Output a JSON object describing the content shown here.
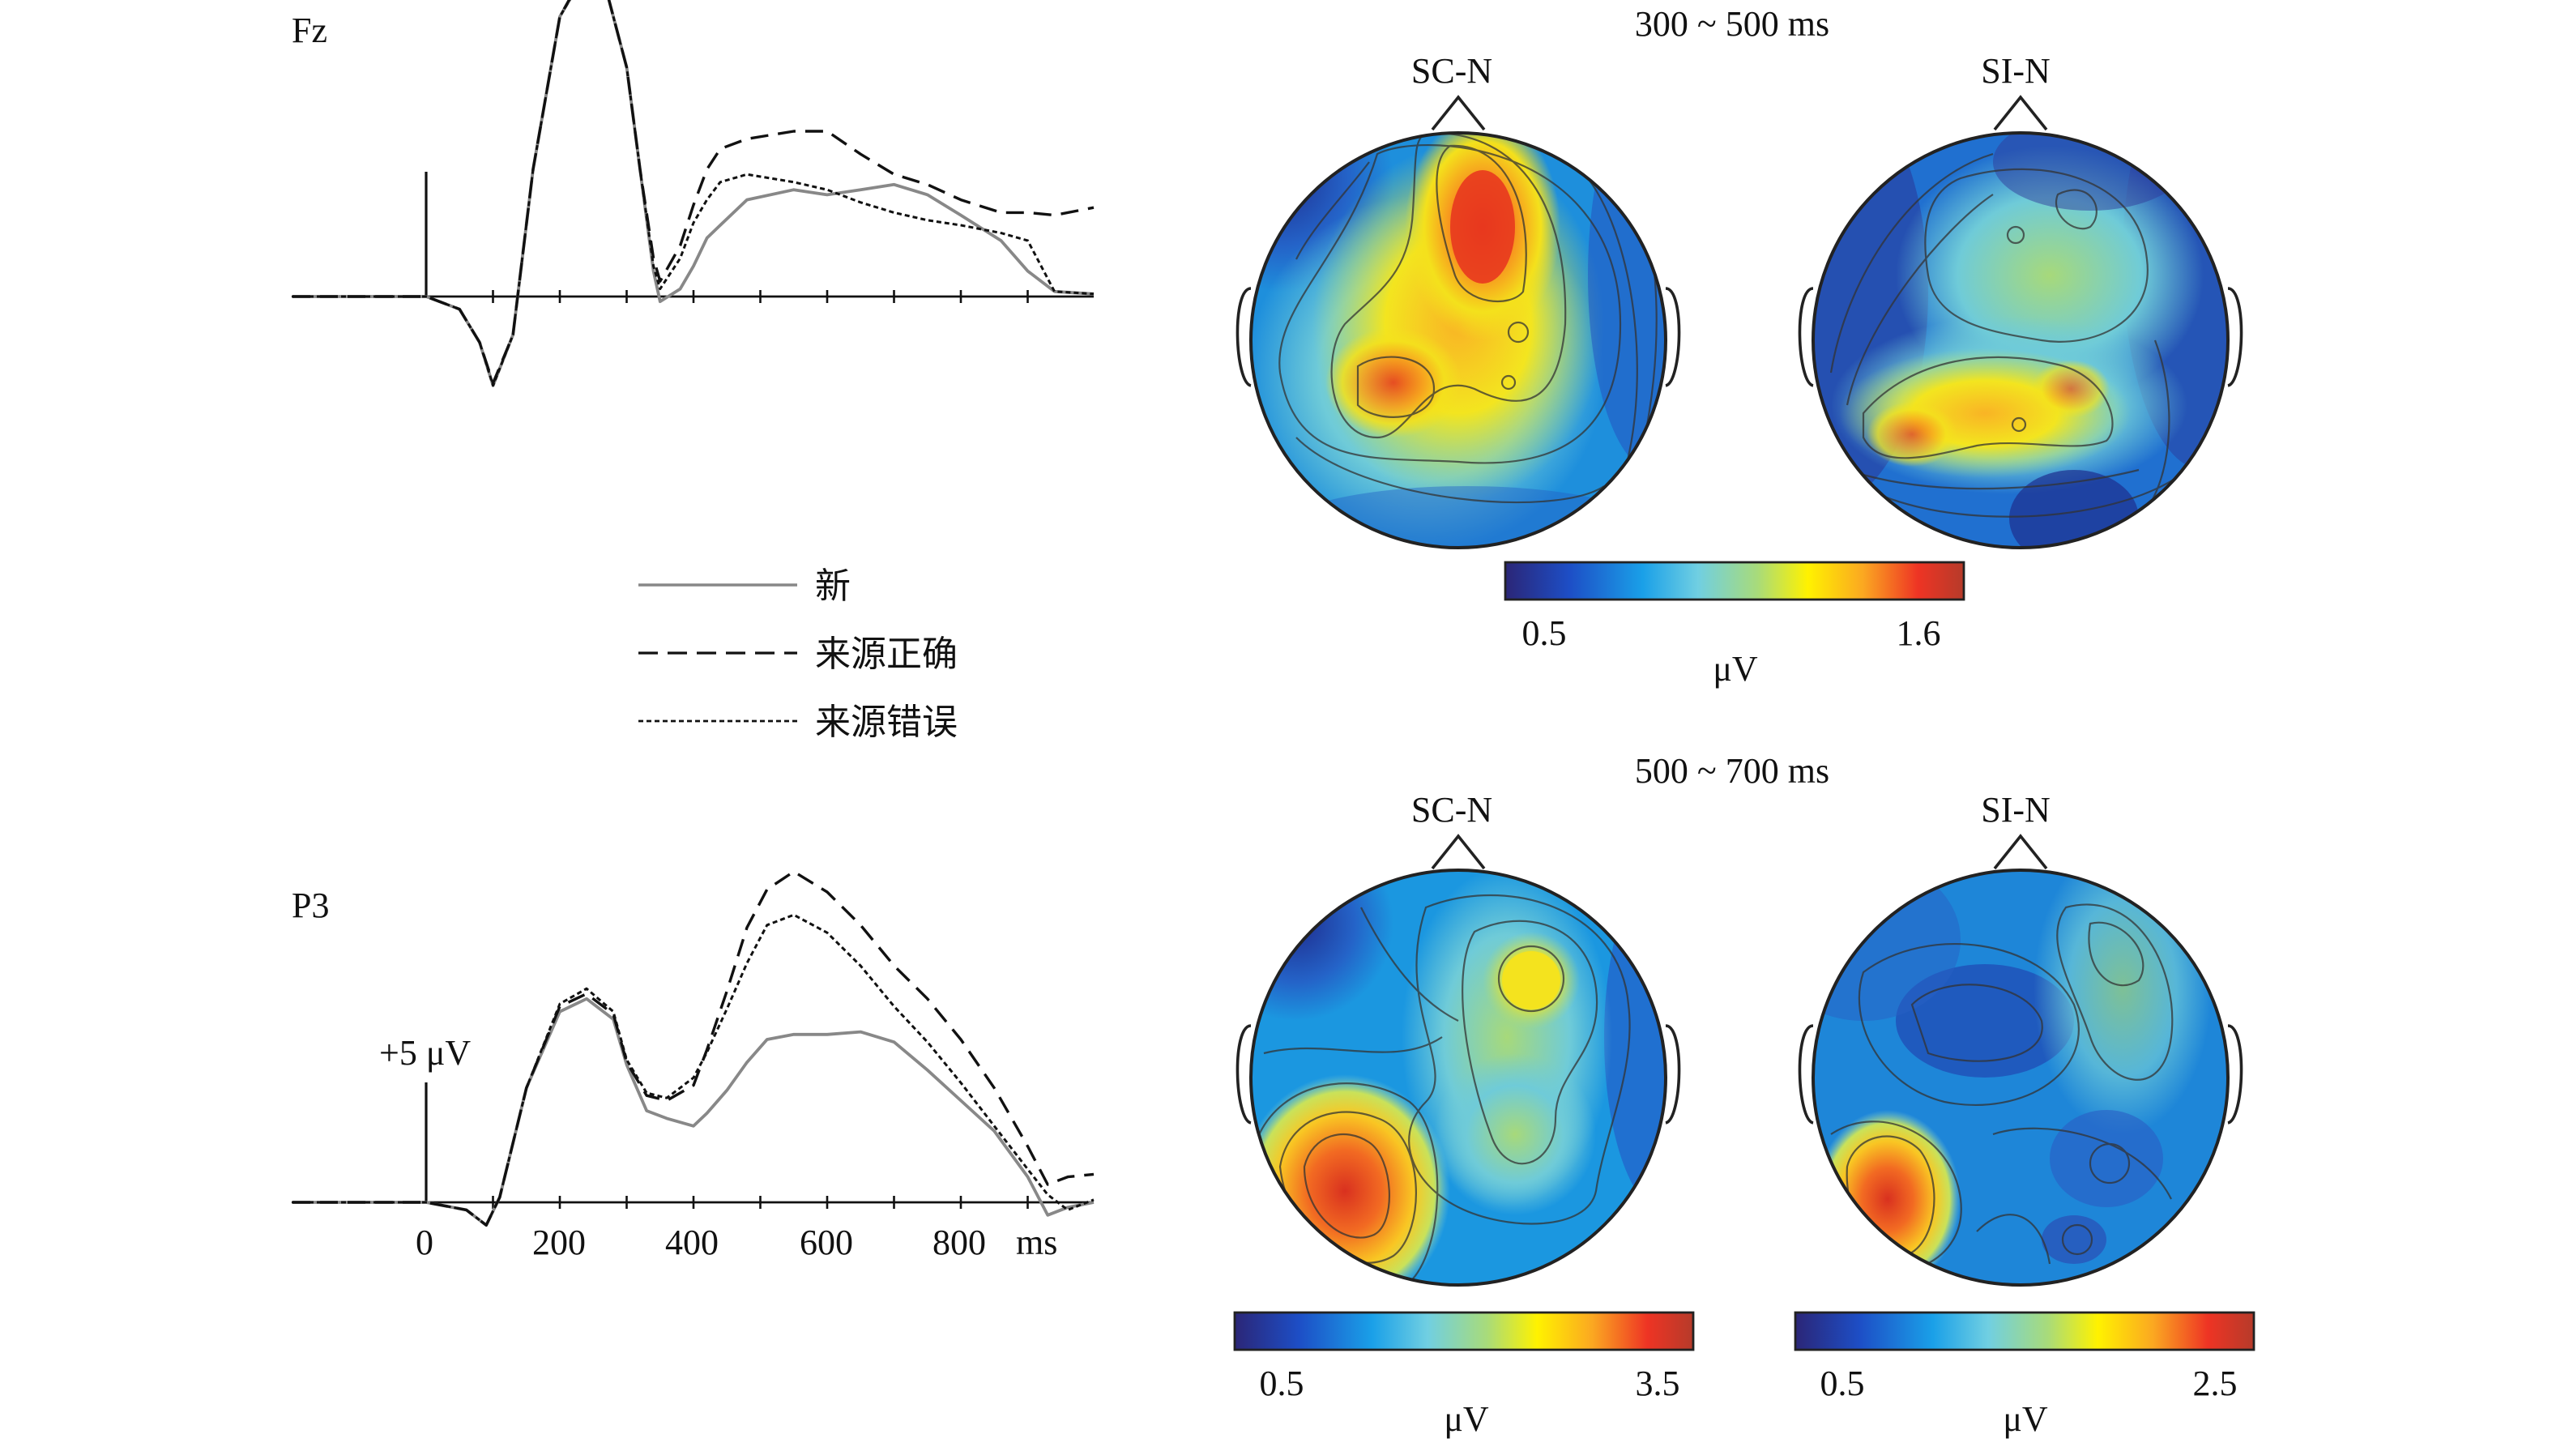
{
  "erp": {
    "time_axis": {
      "ticks": [
        0,
        200,
        400,
        600,
        800
      ],
      "tick_labels": [
        "0",
        "200",
        "400",
        "600",
        "800"
      ],
      "unit": "ms",
      "range": [
        -200,
        1000
      ]
    },
    "scale_bar": {
      "label": "+5 μV",
      "value": 5
    },
    "legend": [
      {
        "label": "新",
        "style": "solid",
        "color": "#888888"
      },
      {
        "label": "来源正确",
        "style": "dashed",
        "color": "#111111"
      },
      {
        "label": "来源错误",
        "style": "dotted",
        "color": "#111111"
      }
    ]
  },
  "chart_data": [
    {
      "type": "line",
      "title": "Fz",
      "xlabel": "ms",
      "ylabel": "μV",
      "xlim": [
        -200,
        1000
      ],
      "series": [
        {
          "name": "新",
          "x": [
            -200,
            -100,
            0,
            50,
            80,
            100,
            130,
            160,
            200,
            240,
            270,
            300,
            320,
            340,
            350,
            380,
            400,
            420,
            440,
            480,
            550,
            600,
            650,
            700,
            750,
            800,
            860,
            900,
            940,
            1000
          ],
          "y": [
            0,
            0,
            0,
            -0.5,
            -1.8,
            -3.5,
            -1.5,
            5,
            11,
            12.8,
            12,
            9,
            5,
            1,
            -0.2,
            0.3,
            1.2,
            2.3,
            2.8,
            3.8,
            4.2,
            4.0,
            4.2,
            4.4,
            4.0,
            3.2,
            2.2,
            1.0,
            0.2,
            0.1
          ]
        },
        {
          "name": "来源正确",
          "x": [
            -200,
            -100,
            0,
            50,
            80,
            100,
            130,
            160,
            200,
            240,
            270,
            300,
            320,
            340,
            350,
            380,
            400,
            420,
            440,
            480,
            550,
            600,
            650,
            700,
            750,
            800,
            860,
            900,
            940,
            1000
          ],
          "y": [
            0,
            0,
            0,
            -0.5,
            -1.8,
            -3.4,
            -1.5,
            5,
            11,
            12.9,
            12,
            9,
            5,
            1.5,
            0.6,
            2.0,
            3.6,
            5.0,
            5.8,
            6.2,
            6.5,
            6.5,
            5.6,
            4.8,
            4.4,
            3.8,
            3.3,
            3.3,
            3.2,
            3.5
          ]
        },
        {
          "name": "来源错误",
          "x": [
            -200,
            -100,
            0,
            50,
            80,
            100,
            130,
            160,
            200,
            240,
            270,
            300,
            320,
            340,
            350,
            380,
            400,
            420,
            440,
            480,
            550,
            600,
            650,
            700,
            750,
            800,
            860,
            900,
            940,
            1000
          ],
          "y": [
            0,
            0,
            0,
            -0.5,
            -1.8,
            -3.5,
            -1.5,
            5,
            11,
            12.8,
            12,
            9,
            5,
            1.2,
            0.3,
            1.5,
            2.9,
            3.8,
            4.5,
            4.8,
            4.5,
            4.2,
            3.7,
            3.3,
            3.0,
            2.8,
            2.5,
            2.2,
            0.2,
            0.1
          ]
        }
      ]
    },
    {
      "type": "line",
      "title": "P3",
      "xlabel": "ms",
      "ylabel": "μV",
      "xlim": [
        -200,
        1000
      ],
      "series": [
        {
          "name": "新",
          "x": [
            -200,
            -100,
            0,
            60,
            90,
            110,
            150,
            200,
            240,
            280,
            300,
            330,
            360,
            400,
            420,
            450,
            480,
            510,
            550,
            600,
            650,
            700,
            750,
            800,
            850,
            900,
            930,
            960,
            1000
          ],
          "y": [
            0,
            0,
            0,
            -0.3,
            -0.9,
            0.2,
            4.5,
            7.5,
            8.0,
            7.2,
            5.4,
            3.6,
            3.3,
            3.0,
            3.5,
            4.4,
            5.5,
            6.4,
            6.6,
            6.6,
            6.7,
            6.3,
            5.2,
            4.0,
            2.8,
            1.0,
            -0.5,
            -0.2,
            0
          ]
        },
        {
          "name": "来源正确",
          "x": [
            -200,
            -100,
            0,
            60,
            90,
            110,
            150,
            200,
            240,
            280,
            300,
            330,
            360,
            400,
            420,
            450,
            480,
            510,
            550,
            600,
            650,
            700,
            750,
            800,
            850,
            900,
            930,
            960,
            1000
          ],
          "y": [
            0,
            0,
            0,
            -0.3,
            -0.9,
            0.2,
            4.5,
            7.7,
            8.2,
            7.4,
            5.5,
            4.2,
            4.0,
            4.6,
            6.0,
            8.3,
            10.8,
            12.3,
            13.0,
            12.2,
            10.9,
            9.3,
            8.0,
            6.4,
            4.5,
            2.2,
            0.7,
            1.0,
            1.1
          ]
        },
        {
          "name": "来源错误",
          "x": [
            -200,
            -100,
            0,
            60,
            90,
            110,
            150,
            200,
            240,
            280,
            300,
            330,
            360,
            400,
            420,
            450,
            480,
            510,
            550,
            600,
            650,
            700,
            750,
            800,
            850,
            900,
            930,
            960,
            1000
          ],
          "y": [
            0,
            0,
            0,
            -0.3,
            -0.9,
            0.2,
            4.5,
            7.8,
            8.4,
            7.5,
            5.6,
            4.3,
            4.1,
            4.9,
            5.9,
            7.6,
            9.4,
            10.9,
            11.3,
            10.6,
            9.3,
            7.7,
            6.3,
            4.7,
            3.0,
            1.3,
            0.3,
            -0.3,
            0.1
          ]
        }
      ]
    },
    {
      "type": "heatmap",
      "title": "300 ~ 500 ms",
      "panels": [
        "SC-N",
        "SI-N"
      ],
      "colorbar": {
        "min": 0.5,
        "max": 1.6,
        "unit": "μV",
        "tick_labels": [
          "0.5",
          "1.6"
        ]
      }
    },
    {
      "type": "heatmap",
      "title": "500 ~ 700 ms",
      "panels": [
        "SC-N",
        "SI-N"
      ],
      "colorbars": [
        {
          "panel": "SC-N",
          "min": 0.5,
          "max": 3.5,
          "unit": "μV",
          "tick_labels": [
            "0.5",
            "3.5"
          ]
        },
        {
          "panel": "SI-N",
          "min": 0.5,
          "max": 2.5,
          "unit": "μV",
          "tick_labels": [
            "0.5",
            "2.5"
          ]
        }
      ]
    }
  ],
  "colors": {
    "colormap": [
      "#2b2677",
      "#1d4ec6",
      "#1aa0e8",
      "#70cfe2",
      "#a8db7a",
      "#fff200",
      "#fba821",
      "#ee3424",
      "#b63b2a"
    ]
  }
}
